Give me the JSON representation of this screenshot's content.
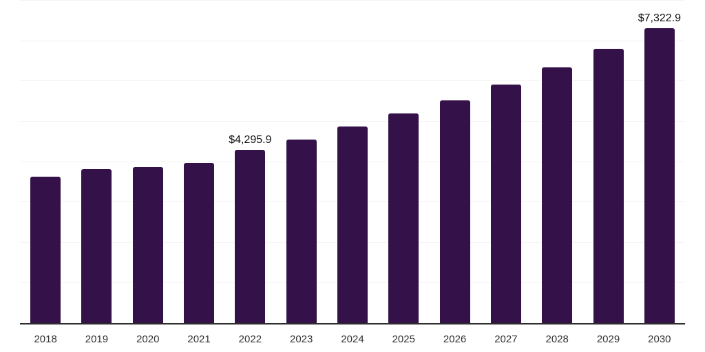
{
  "chart": {
    "background_color": "#ffffff",
    "bar_color": "#341249",
    "gridline_color": "#f2f2f2",
    "axis_line_color": "#2e2e2e",
    "x_label_color": "#333333",
    "data_label_color": "#111111"
  },
  "chart_data": {
    "type": "bar",
    "title": "",
    "xlabel": "",
    "ylabel": "",
    "categories": [
      "2018",
      "2019",
      "2020",
      "2021",
      "2022",
      "2023",
      "2024",
      "2025",
      "2026",
      "2027",
      "2028",
      "2029",
      "2030"
    ],
    "values": [
      3630,
      3815,
      3865,
      3980,
      4295.9,
      4560,
      4875,
      5200,
      5530,
      5915,
      6350,
      6800,
      7322.9
    ],
    "data_labels": {
      "2022": "$4,295.9",
      "2030": "$7,322.9"
    },
    "currency_prefix": "$",
    "ylim": [
      0,
      8000
    ],
    "grid_step": 1000,
    "grid": "horizontal-only",
    "y_tick_labels_visible": false,
    "legend": "none"
  }
}
